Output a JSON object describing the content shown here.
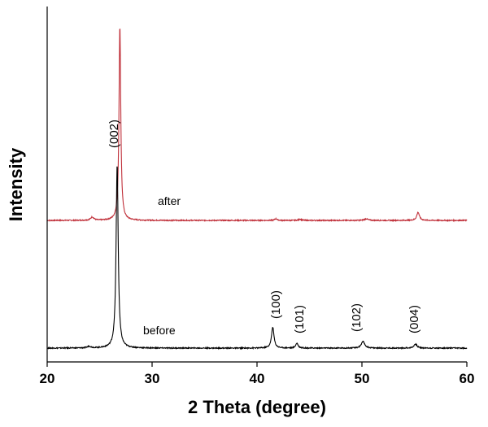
{
  "chart_data": {
    "type": "line",
    "title": "",
    "xlabel": "2 Theta (degree)",
    "ylabel": "Intensity",
    "xlim": [
      20,
      60
    ],
    "x_ticks": [
      20,
      30,
      40,
      50,
      60
    ],
    "y_ticks_labeled": false,
    "grid": false,
    "legend": "none",
    "series": [
      {
        "name": "after",
        "color": "#c0303a",
        "baseline": 271,
        "peaks": [
          {
            "x": 24.3,
            "height": 4,
            "width": 0.18
          },
          {
            "x": 26.93,
            "height": 240,
            "width": 0.1
          },
          {
            "x": 41.8,
            "height": 2,
            "width": 0.15
          },
          {
            "x": 44.1,
            "height": 1.5,
            "width": 0.15
          },
          {
            "x": 50.4,
            "height": 2,
            "width": 0.2
          },
          {
            "x": 55.35,
            "height": 10,
            "width": 0.15
          }
        ]
      },
      {
        "name": "before",
        "color": "#000000",
        "baseline": 428,
        "peaks": [
          {
            "x": 24.0,
            "height": 2,
            "width": 0.2
          },
          {
            "x": 26.67,
            "height": 226,
            "width": 0.12
          },
          {
            "x": 41.5,
            "height": 26,
            "width": 0.14
          },
          {
            "x": 43.8,
            "height": 6,
            "width": 0.14
          },
          {
            "x": 50.1,
            "height": 8,
            "width": 0.2
          },
          {
            "x": 55.1,
            "height": 5,
            "width": 0.18
          }
        ]
      }
    ],
    "annotations": [
      {
        "text": "(002)",
        "x": 26.7
      },
      {
        "text": "(100)",
        "x": 41.5
      },
      {
        "text": "(101)",
        "x": 43.8
      },
      {
        "text": "(102)",
        "x": 50.1
      },
      {
        "text": "(004)",
        "x": 55.1
      }
    ]
  }
}
